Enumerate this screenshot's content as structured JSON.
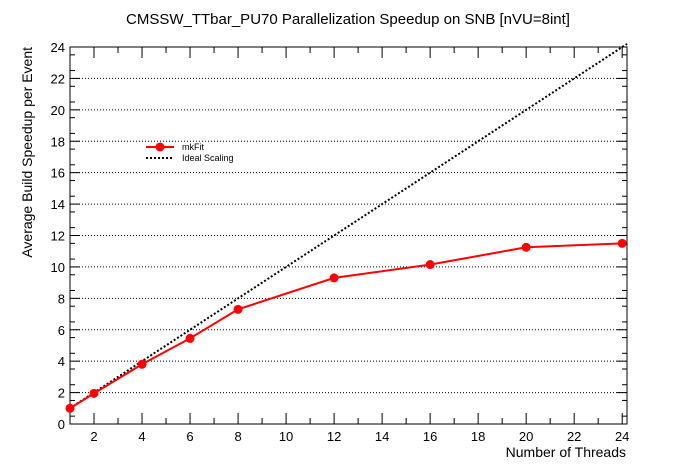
{
  "chart_data": {
    "type": "line",
    "title": "CMSSW_TTbar_PU70 Parallelization Speedup on SNB [nVU=8int]",
    "xlabel": "Number of Threads",
    "ylabel": "Average Build Speedup per Event",
    "xlim": [
      1,
      24.2
    ],
    "ylim": [
      0,
      24
    ],
    "x_ticks": [
      2,
      4,
      6,
      8,
      10,
      12,
      14,
      16,
      18,
      20,
      22,
      24
    ],
    "y_ticks": [
      0,
      2,
      4,
      6,
      8,
      10,
      12,
      14,
      16,
      18,
      20,
      22,
      24
    ],
    "grid": "horizontal-dotted",
    "legend_position": "upper-left",
    "series": [
      {
        "name": "mkFit",
        "style": "solid-line-with-markers",
        "color": "#ff0000",
        "x": [
          1,
          2,
          4,
          6,
          8,
          12,
          16,
          20,
          24
        ],
        "y": [
          1.0,
          1.95,
          3.8,
          5.45,
          7.3,
          9.3,
          10.15,
          11.25,
          11.5
        ]
      },
      {
        "name": "Ideal Scaling",
        "style": "dotted-line",
        "color": "#000000",
        "x": [
          1,
          24.2
        ],
        "y": [
          1,
          24.2
        ]
      }
    ]
  }
}
